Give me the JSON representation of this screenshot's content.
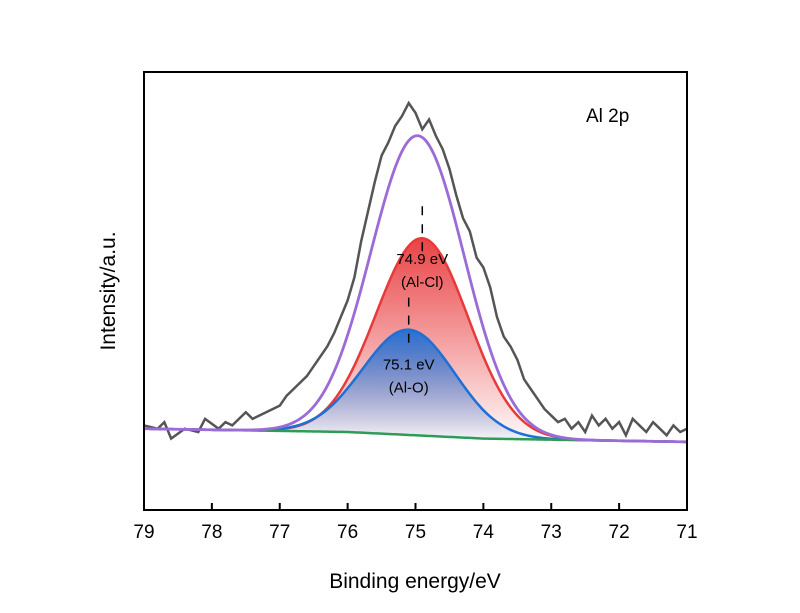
{
  "chart_data": {
    "type": "line",
    "title": "",
    "panel_label": "Al 2p",
    "xlabel": "Binding energy/eV",
    "ylabel": "Intensity/a.u.",
    "xlim": [
      79,
      71
    ],
    "x_reversed": true,
    "ylim": [
      -0.18,
      1.0
    ],
    "x_ticks": [
      "79",
      "78",
      "77",
      "76",
      "75",
      "74",
      "73",
      "72",
      "71"
    ],
    "y_ticks_shown": false,
    "grid": false,
    "legend": "none",
    "series": [
      {
        "role": "raw",
        "color": "#555555",
        "x": [
          79.0,
          78.8,
          78.7,
          78.6,
          78.4,
          78.2,
          78.1,
          77.9,
          77.8,
          77.7,
          77.5,
          77.4,
          77.2,
          77.0,
          76.9,
          76.8,
          76.6,
          76.5,
          76.3,
          76.2,
          76.0,
          75.9,
          75.8,
          75.7,
          75.6,
          75.5,
          75.4,
          75.3,
          75.2,
          75.1,
          75.0,
          74.9,
          74.8,
          74.7,
          74.6,
          74.5,
          74.4,
          74.3,
          74.2,
          74.1,
          74.0,
          73.9,
          73.8,
          73.7,
          73.6,
          73.5,
          73.4,
          73.3,
          73.2,
          73.1,
          73.0,
          72.9,
          72.8,
          72.7,
          72.6,
          72.5,
          72.4,
          72.3,
          72.2,
          72.1,
          72.0,
          71.9,
          71.8,
          71.7,
          71.6,
          71.5,
          71.4,
          71.3,
          71.2,
          71.1,
          71.0
        ],
        "y": [
          0.02,
          0.01,
          0.03,
          -0.02,
          0.01,
          0.0,
          0.04,
          0.01,
          0.03,
          0.02,
          0.06,
          0.04,
          0.06,
          0.08,
          0.11,
          0.13,
          0.17,
          0.2,
          0.26,
          0.3,
          0.4,
          0.47,
          0.58,
          0.67,
          0.76,
          0.84,
          0.88,
          0.93,
          0.96,
          1.0,
          0.97,
          0.92,
          0.95,
          0.9,
          0.86,
          0.8,
          0.72,
          0.65,
          0.61,
          0.53,
          0.5,
          0.44,
          0.35,
          0.29,
          0.26,
          0.22,
          0.16,
          0.13,
          0.1,
          0.07,
          0.05,
          0.03,
          0.04,
          0.01,
          0.03,
          0.0,
          0.05,
          0.02,
          0.04,
          0.01,
          0.03,
          -0.01,
          0.04,
          0.02,
          0.0,
          0.03,
          0.01,
          -0.01,
          0.02,
          0.0,
          0.01
        ]
      },
      {
        "role": "component",
        "label": "74.9 eV\n(Al-Cl)",
        "color": "#e8393b",
        "fill_color": "#e8393b",
        "center": 74.9,
        "height": 0.6,
        "fwhm": 1.6
      },
      {
        "role": "component",
        "label": "75.1 eV\n(Al-O)",
        "color": "#1f6fd6",
        "fill_color": "#1f6fd6",
        "center": 75.1,
        "height": 0.32,
        "fwhm": 1.6
      },
      {
        "role": "background",
        "color": "#2e9c57",
        "x": [
          79.0,
          76.0,
          75.0,
          74.0,
          71.0
        ],
        "y": [
          0.01,
          0.0,
          -0.01,
          -0.02,
          -0.03
        ]
      },
      {
        "role": "envelope",
        "color": "#9b6bd6"
      }
    ],
    "annotations": [
      {
        "text": "74.9 eV",
        "x": 74.9,
        "y": 0.51
      },
      {
        "text": "(Al-Cl)",
        "x": 74.9,
        "y": 0.44
      },
      {
        "text": "75.1 eV",
        "x": 75.1,
        "y": 0.19
      },
      {
        "text": "(Al-O)",
        "x": 75.1,
        "y": 0.12
      }
    ]
  }
}
